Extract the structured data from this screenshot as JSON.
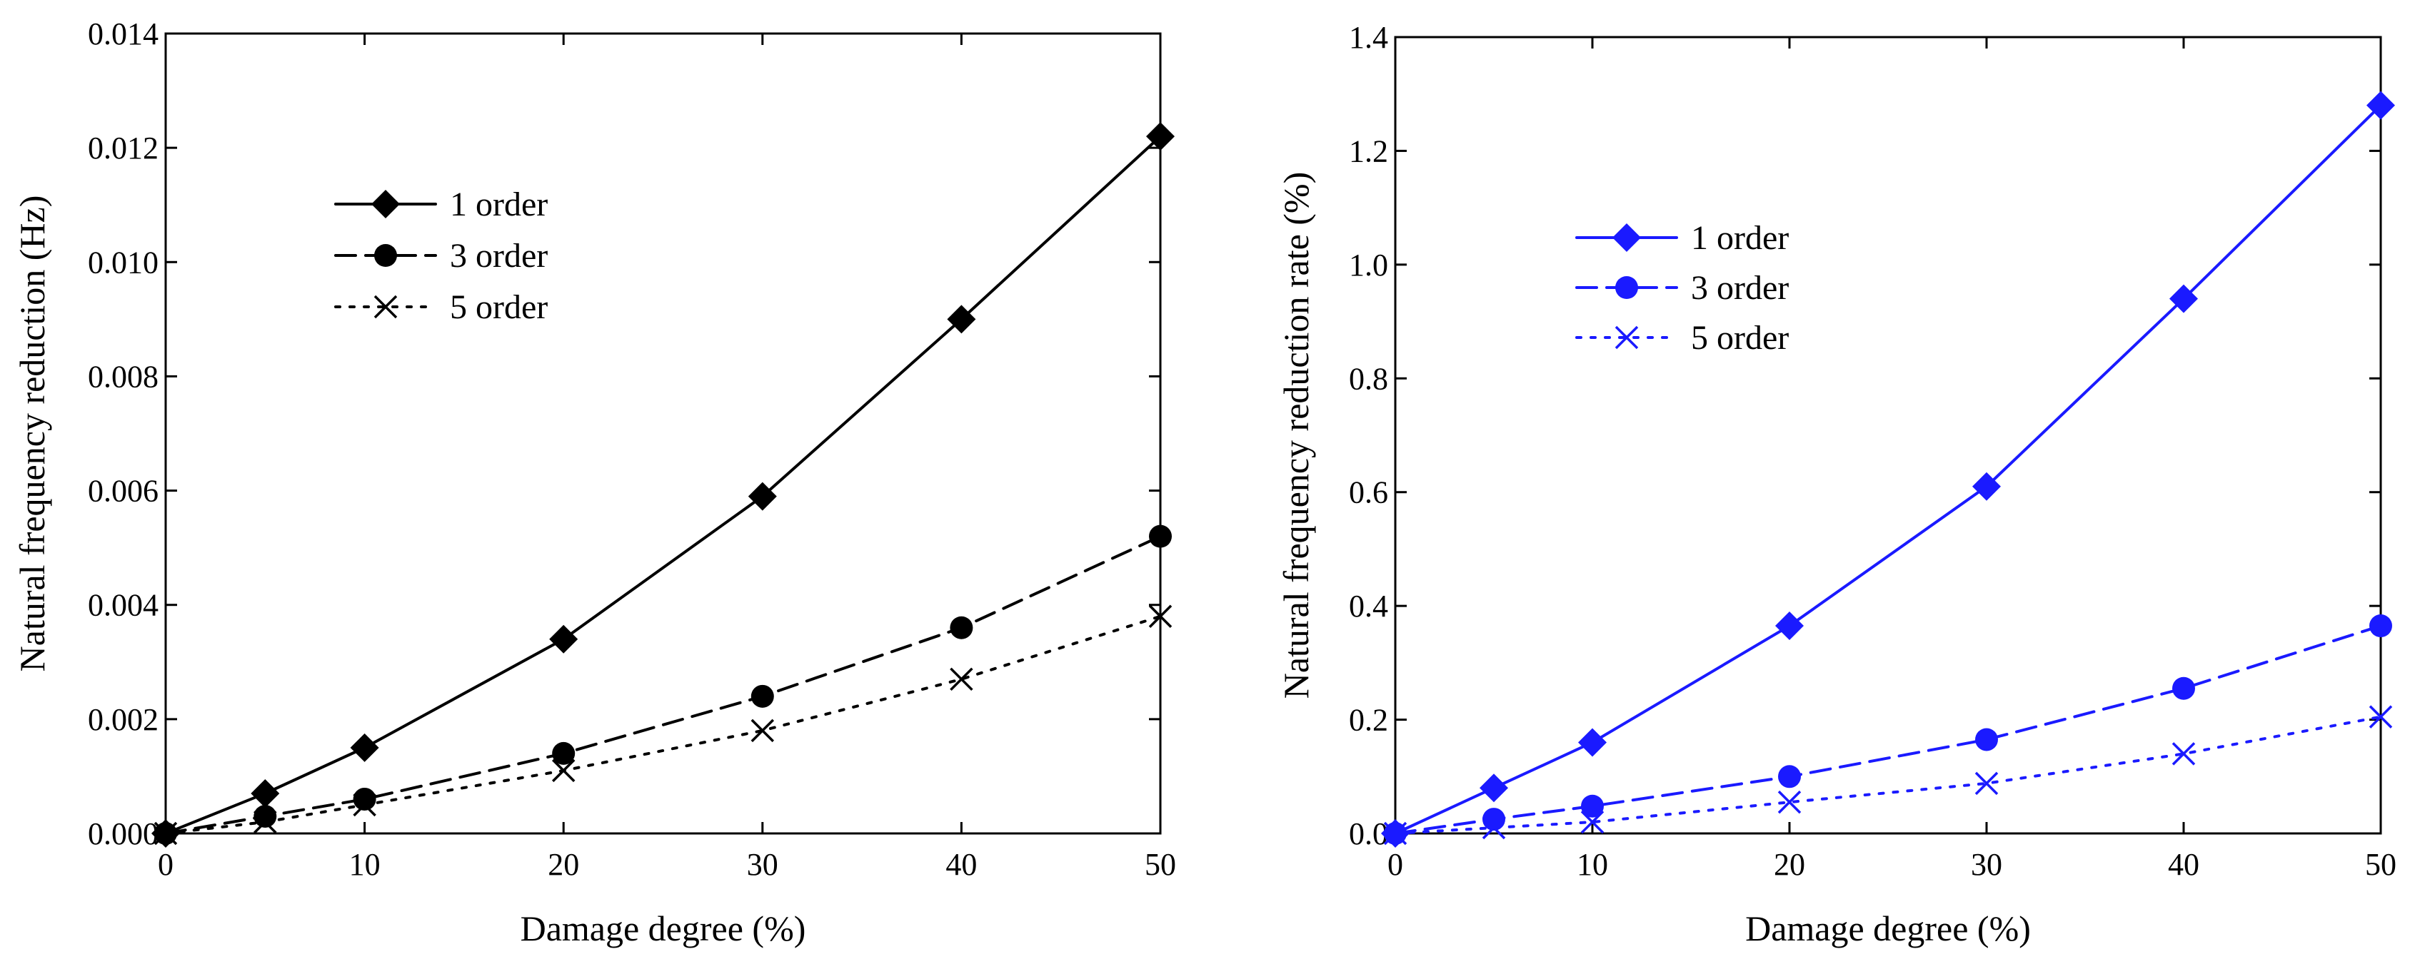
{
  "chart_data": [
    {
      "type": "line",
      "title": "",
      "xlabel": "Damage degree (%)",
      "ylabel": "Natural frequency reduction (Hz)",
      "xlim": [
        0,
        50
      ],
      "ylim": [
        0,
        0.014
      ],
      "xticks": [
        "0",
        "10",
        "20",
        "30",
        "40",
        "50"
      ],
      "yticks": [
        "0.000",
        "0.002",
        "0.004",
        "0.006",
        "0.008",
        "0.010",
        "0.012",
        "0.014"
      ],
      "color": "#000000",
      "legend_position": "top-left",
      "grid": false,
      "x": [
        0,
        5,
        10,
        20,
        30,
        40,
        50
      ],
      "series": [
        {
          "name": "1 order",
          "marker": "diamond",
          "line": "solid",
          "values": [
            0,
            0.0007,
            0.0015,
            0.0034,
            0.0059,
            0.009,
            0.0122
          ]
        },
        {
          "name": "3 order",
          "marker": "circle",
          "line": "dashed",
          "values": [
            0,
            0.0003,
            0.0006,
            0.0014,
            0.0024,
            0.0036,
            0.0052
          ]
        },
        {
          "name": "5 order",
          "marker": "cross",
          "line": "dotted",
          "values": [
            0,
            0.0002,
            0.0005,
            0.0011,
            0.0018,
            0.0027,
            0.0038
          ]
        }
      ]
    },
    {
      "type": "line",
      "title": "",
      "xlabel": "Damage degree (%)",
      "ylabel": "Natural frequency reduction rate (%)",
      "xlim": [
        0,
        50
      ],
      "ylim": [
        0,
        1.4
      ],
      "xticks": [
        "0",
        "10",
        "20",
        "30",
        "40",
        "50"
      ],
      "yticks": [
        "0.0",
        "0.2",
        "0.4",
        "0.6",
        "0.8",
        "1.0",
        "1.2",
        "1.4"
      ],
      "color": "#1a1aff",
      "legend_position": "top-left",
      "grid": false,
      "x": [
        0,
        5,
        10,
        20,
        30,
        40,
        50
      ],
      "series": [
        {
          "name": "1 order",
          "marker": "diamond",
          "line": "solid",
          "values": [
            0,
            0.08,
            0.16,
            0.365,
            0.61,
            0.94,
            1.28
          ]
        },
        {
          "name": "3 order",
          "marker": "circle",
          "line": "dashed",
          "values": [
            0,
            0.025,
            0.048,
            0.1,
            0.165,
            0.255,
            0.365
          ]
        },
        {
          "name": "5 order",
          "marker": "cross",
          "line": "dotted",
          "values": [
            0,
            0.01,
            0.02,
            0.055,
            0.088,
            0.14,
            0.205
          ]
        }
      ]
    }
  ]
}
